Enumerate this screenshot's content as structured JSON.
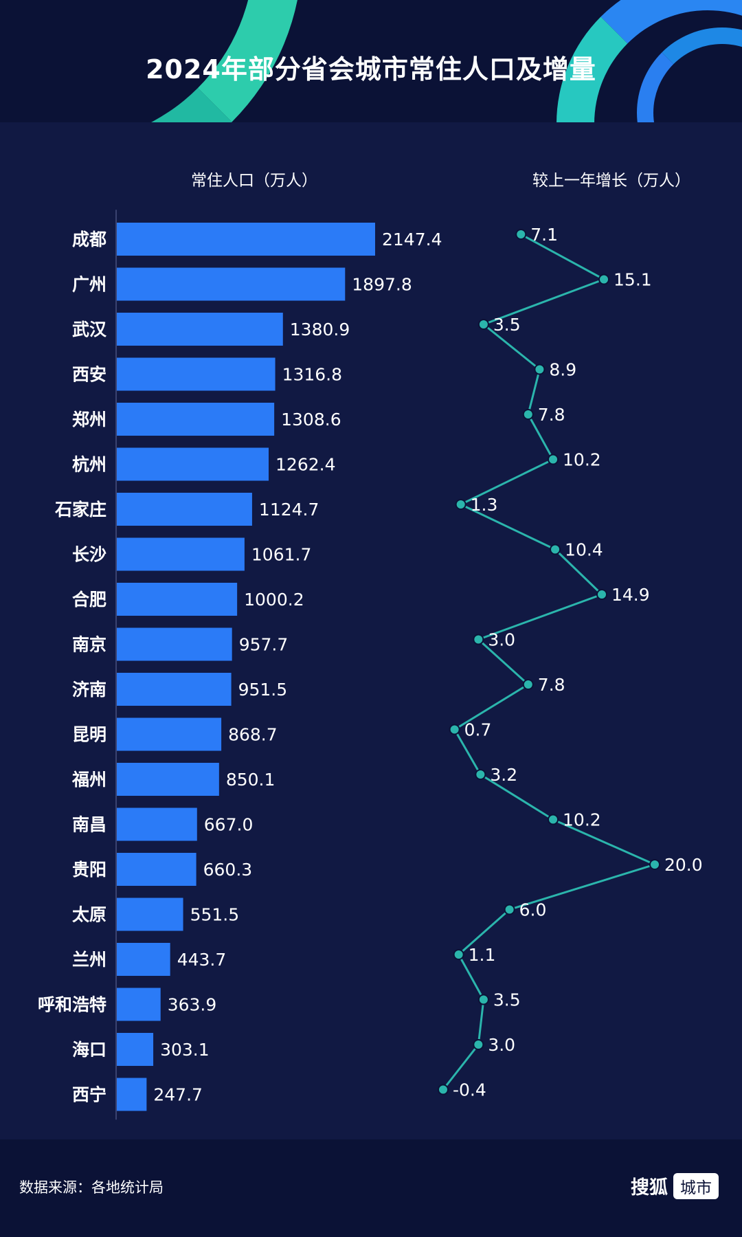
{
  "title": "2024年部分省会城市常住人口及增量",
  "chart_data": {
    "type": "bar",
    "title": "2024年部分省会城市常住人口及增量",
    "categories": [
      "成都",
      "广州",
      "武汉",
      "西安",
      "郑州",
      "杭州",
      "石家庄",
      "长沙",
      "合肥",
      "南京",
      "济南",
      "昆明",
      "福州",
      "南昌",
      "贵阳",
      "太原",
      "兰州",
      "呼和浩特",
      "海口",
      "西宁"
    ],
    "series": [
      {
        "name": "常住人口（万人）",
        "type": "bar",
        "values": [
          2147.4,
          1897.8,
          1380.9,
          1316.8,
          1308.6,
          1262.4,
          1124.7,
          1061.7,
          1000.2,
          957.7,
          951.5,
          868.7,
          850.1,
          667.0,
          660.3,
          551.5,
          443.7,
          363.9,
          303.1,
          247.7
        ],
        "labels": [
          "2147.4",
          "1897.8",
          "1380.9",
          "1316.8",
          "1308.6",
          "1262.4",
          "1124.7",
          "1061.7",
          "1000.2",
          "957.7",
          "951.5",
          "868.7",
          "850.1",
          "667.0",
          "660.3",
          "551.5",
          "443.7",
          "363.9",
          "303.1",
          "247.7"
        ]
      },
      {
        "name": "较上一年增长（万人）",
        "type": "line",
        "values": [
          7.1,
          15.1,
          3.5,
          8.9,
          7.8,
          10.2,
          1.3,
          10.4,
          14.9,
          3.0,
          7.8,
          0.7,
          3.2,
          10.2,
          20.0,
          6.0,
          1.1,
          3.5,
          3.0,
          -0.4
        ],
        "labels": [
          "7.1",
          "15.1",
          "3.5",
          "8.9",
          "7.8",
          "10.2",
          "1.3",
          "10.4",
          "14.9",
          "3.0",
          "7.8",
          "0.7",
          "3.2",
          "10.2",
          "20.0",
          "6.0",
          "1.1",
          "3.5",
          "3.0",
          "-0.4"
        ]
      }
    ],
    "orientation": "horizontal",
    "bar_range": [
      0,
      2147.4
    ],
    "line_range": [
      -0.4,
      20.0
    ],
    "grid": false,
    "colors": {
      "bar": "#2b7bf7",
      "line": "#2bb5ac",
      "marker": "#2bb5ac",
      "background": "#0b1236",
      "panel": "#111943"
    }
  },
  "source": "数据来源：各地统计局",
  "brand": {
    "name": "搜狐",
    "tag": "城市"
  }
}
